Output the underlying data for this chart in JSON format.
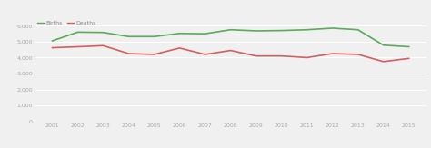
{
  "years": [
    2001,
    2002,
    2003,
    2004,
    2005,
    2006,
    2007,
    2008,
    2009,
    2010,
    2011,
    2012,
    2013,
    2014,
    2015
  ],
  "births": [
    5050,
    5600,
    5580,
    5320,
    5320,
    5520,
    5500,
    5750,
    5680,
    5700,
    5750,
    5850,
    5750,
    4780,
    4680
  ],
  "deaths": [
    4620,
    4680,
    4750,
    4250,
    4200,
    4600,
    4200,
    4450,
    4100,
    4100,
    4000,
    4250,
    4200,
    3750,
    3950
  ],
  "births_color": "#5aab5a",
  "deaths_color": "#d45f5f",
  "background_color": "#f0f0f0",
  "plot_bg_color": "#f0f0f0",
  "grid_color": "#ffffff",
  "legend_labels": [
    "Births",
    "Deaths"
  ],
  "ylim": [
    0,
    6500
  ],
  "yticks": [
    0,
    1000,
    2000,
    3000,
    4000,
    5000,
    6000
  ],
  "ytick_labels": [
    "0",
    "1,000",
    "2,000",
    "3,000",
    "4,000",
    "5,000",
    "6,000"
  ],
  "linewidth": 1.2
}
